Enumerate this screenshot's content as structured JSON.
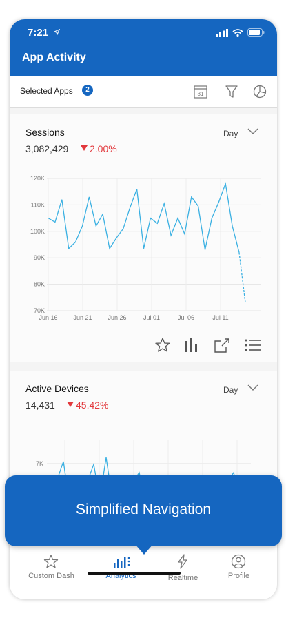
{
  "status": {
    "time": "7:21"
  },
  "header": {
    "title": "App Activity"
  },
  "toolbar": {
    "selected_label": "Selected Apps",
    "selected_count": "2",
    "calendar_day": "31"
  },
  "sessions": {
    "title": "Sessions",
    "value": "3,082,429",
    "delta": "2.00%",
    "period": "Day",
    "chart_data": {
      "type": "line",
      "x_ticks": [
        "Jun 16",
        "Jun 21",
        "Jun 26",
        "Jul 01",
        "Jul 06",
        "Jul 11"
      ],
      "y_ticks": [
        "120K",
        "110K",
        "100K",
        "90K",
        "80K",
        "70K"
      ],
      "ylim": [
        70000,
        120000
      ],
      "color": "#3ab0e2",
      "values": [
        105000,
        103500,
        112000,
        93500,
        96000,
        102000,
        113000,
        102000,
        106500,
        93500,
        97500,
        101000,
        109000,
        116000,
        93500,
        105000,
        103000,
        110500,
        98500,
        105000,
        99000,
        113000,
        109500,
        93000,
        105000,
        111000,
        118000,
        102000,
        92000
      ],
      "projected": [
        92000,
        73000
      ]
    }
  },
  "devices": {
    "title": "Active Devices",
    "value": "14,431",
    "delta": "45.42%",
    "period": "Day",
    "chart_data": {
      "type": "line",
      "y_ticks": [
        "7K"
      ],
      "color": "#3ab0e2"
    }
  },
  "tooltip": {
    "text": "Simplified Navigation"
  },
  "nav": {
    "items": [
      {
        "label": "Custom Dash"
      },
      {
        "label": "Analytics"
      },
      {
        "label": "Realtime"
      },
      {
        "label": "Profile"
      }
    ]
  },
  "colors": {
    "primary": "#1566c0",
    "accent_line": "#3ab0e2",
    "negative": "#e2383c"
  }
}
